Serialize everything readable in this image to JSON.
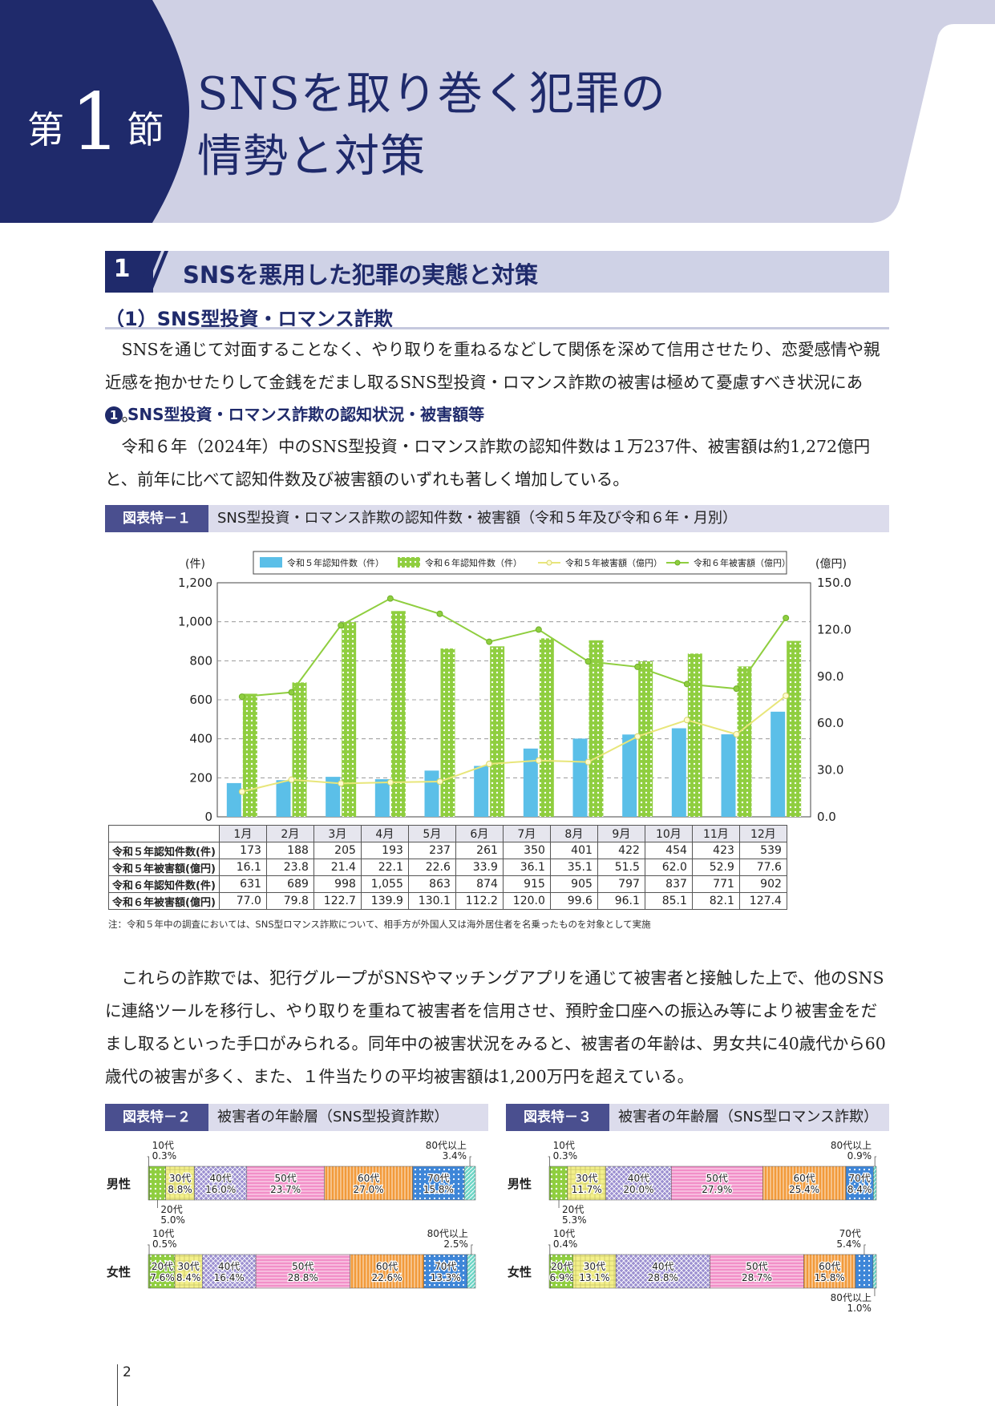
{
  "header": {
    "chapter_pre": "第",
    "chapter_num": "1",
    "chapter_post": "節",
    "title_line1": "SNSを取り巻く犯罪の",
    "title_line2": "情勢と対策"
  },
  "section": {
    "number": "1",
    "title": "SNSを悪用した犯罪の実態と対策",
    "subtitle": "（1）SNS型投資・ロマンス詐欺"
  },
  "paragraphs": {
    "p1": "　SNSを通じて対面することなく、やり取りを重ねるなどして関係を深めて信用させたり、恋愛感情や親近感を抱かせたりして金銭をだまし取るSNS型投資・ロマンス詐欺の被害は極めて憂慮すべき状況にある。",
    "item_num": "1",
    "item_title": "SNS型投資・ロマンス詐欺の認知状況・被害額等",
    "p2": "　令和６年（2024年）中のSNS型投資・ロマンス詐欺の認知件数は１万237件、被害額は約1,272億円と、前年に比べて認知件数及び被害額のいずれも著しく増加している。",
    "p3": "　これらの詐欺では、犯行グループがSNSやマッチングアプリを通じて被害者と接触した上で、他のSNSに連絡ツールを移行し、やり取りを重ねて被害者を信用させ、預貯金口座への振込み等により被害金をだまし取るといった手口がみられる。同年中の被害状況をみると、被害者の年齢は、男女共に40歳代から60歳代の被害が多く、また、１件当たりの平均被害額は1,200万円を超えている。"
  },
  "fig1": {
    "label": "図表特－１",
    "title": "SNS型投資・ロマンス詐欺の認知件数・被害額（令和５年及び令和６年・月別）",
    "note": "注：令和５年中の調査においては、SNS型ロマンス詐欺について、相手方が外国人又は海外居住者を名乗ったものを対象として実施"
  },
  "chart_data": [
    {
      "type": "bar",
      "title": "SNS型投資・ロマンス詐欺の認知件数・被害額（令和５年及び令和６年・月別）",
      "categories": [
        "1月",
        "2月",
        "3月",
        "4月",
        "5月",
        "6月",
        "7月",
        "8月",
        "9月",
        "10月",
        "11月",
        "12月"
      ],
      "ylabel": "(件)",
      "y2label": "(億円)",
      "ylim": [
        0,
        1200
      ],
      "y2lim": [
        0,
        150
      ],
      "yticks": [
        "0",
        "200",
        "400",
        "600",
        "800",
        "1,000",
        "1,200"
      ],
      "y2ticks": [
        "0.0",
        "30.0",
        "60.0",
        "90.0",
        "120.0",
        "150.0"
      ],
      "grid": true,
      "legend_position": "top",
      "series": [
        {
          "name": "令和５年認知件数（件）",
          "type": "bar",
          "axis": "left",
          "color": "#5bbfe8",
          "values": [
            173,
            188,
            205,
            193,
            237,
            261,
            350,
            401,
            422,
            454,
            423,
            539
          ]
        },
        {
          "name": "令和６年認知件数（件）",
          "type": "bar",
          "axis": "left",
          "color": "#8fce3f",
          "values": [
            631,
            689,
            998,
            1055,
            863,
            874,
            915,
            905,
            797,
            837,
            771,
            902
          ]
        },
        {
          "name": "令和５年被害額（億円）",
          "type": "line",
          "axis": "right",
          "color": "#f0f08a",
          "values": [
            16.1,
            23.8,
            21.4,
            22.1,
            22.6,
            33.9,
            36.1,
            35.1,
            51.5,
            62.0,
            52.9,
            77.6
          ]
        },
        {
          "name": "令和６年被害額（億円）",
          "type": "line",
          "axis": "right",
          "color": "#8fce3f",
          "values": [
            77.0,
            79.8,
            122.7,
            139.9,
            130.1,
            112.2,
            120.0,
            99.6,
            96.1,
            85.1,
            82.1,
            127.4
          ]
        }
      ],
      "table": {
        "rows": [
          {
            "label": "令和５年認知件数(件)",
            "values": [
              "173",
              "188",
              "205",
              "193",
              "237",
              "261",
              "350",
              "401",
              "422",
              "454",
              "423",
              "539"
            ]
          },
          {
            "label": "令和５年被害額(億円)",
            "values": [
              "16.1",
              "23.8",
              "21.4",
              "22.1",
              "22.6",
              "33.9",
              "36.1",
              "35.1",
              "51.5",
              "62.0",
              "52.9",
              "77.6"
            ]
          },
          {
            "label": "令和６年認知件数(件)",
            "values": [
              "631",
              "689",
              "998",
              "1,055",
              "863",
              "874",
              "915",
              "905",
              "797",
              "837",
              "771",
              "902"
            ]
          },
          {
            "label": "令和６年被害額(億円)",
            "values": [
              "77.0",
              "79.8",
              "122.7",
              "139.9",
              "130.1",
              "112.2",
              "120.0",
              "99.6",
              "96.1",
              "85.1",
              "82.1",
              "127.4"
            ]
          }
        ]
      }
    },
    {
      "type": "bar",
      "title": "被害者の年齢層（SNS型投資詐欺）",
      "label": "図表特－２",
      "categories": [
        "10代",
        "20代",
        "30代",
        "40代",
        "50代",
        "60代",
        "70代",
        "80代以上"
      ],
      "series": [
        {
          "name": "男性",
          "values": [
            0.3,
            5.0,
            8.8,
            16.0,
            23.7,
            27.0,
            15.8,
            3.4
          ],
          "labels": [
            "10代\n0.3%",
            "20代\n5.0%",
            "30代\n8.8%",
            "40代\n16.0%",
            "50代\n23.7%",
            "60代\n27.0%",
            "70代\n15.8%",
            "80代以上\n3.4%"
          ]
        },
        {
          "name": "女性",
          "values": [
            0.5,
            7.6,
            8.4,
            16.4,
            28.8,
            22.6,
            13.3,
            2.5
          ],
          "labels": [
            "10代\n0.5%",
            "20代\n7.6%",
            "30代\n8.4%",
            "40代\n16.4%",
            "50代\n28.8%",
            "60代\n22.6%",
            "70代\n13.3%",
            "80代以上\n2.5%"
          ]
        }
      ]
    },
    {
      "type": "bar",
      "title": "被害者の年齢層（SNS型ロマンス詐欺）",
      "label": "図表特－３",
      "categories": [
        "10代",
        "20代",
        "30代",
        "40代",
        "50代",
        "60代",
        "70代",
        "80代以上"
      ],
      "series": [
        {
          "name": "男性",
          "values": [
            0.3,
            5.3,
            11.7,
            20.0,
            27.9,
            25.4,
            8.4,
            0.9
          ],
          "labels": [
            "10代\n0.3%",
            "20代\n5.3%",
            "30代\n11.7%",
            "40代\n20.0%",
            "50代\n27.9%",
            "60代\n25.4%",
            "70代\n8.4%",
            "80代以上\n0.9%"
          ]
        },
        {
          "name": "女性",
          "values": [
            0.4,
            6.9,
            13.1,
            28.8,
            28.7,
            15.8,
            5.4,
            1.0
          ],
          "labels": [
            "10代\n0.4%",
            "20代\n6.9%",
            "30代\n13.1%",
            "40代\n28.8%",
            "50代\n28.7%",
            "60代\n15.8%",
            "70代\n5.4%",
            "80代以上\n1.0%"
          ]
        }
      ]
    }
  ],
  "colors": {
    "navy": "#1f2a6b",
    "lavender": "#cfd2e6",
    "age": [
      "#8fce3f",
      "#8fce3f",
      "#f3f08a",
      "#9b8fd0",
      "#f28fc8",
      "#f29a3a",
      "#3e86d8",
      "#6ed6c6"
    ]
  },
  "page_number": "2"
}
